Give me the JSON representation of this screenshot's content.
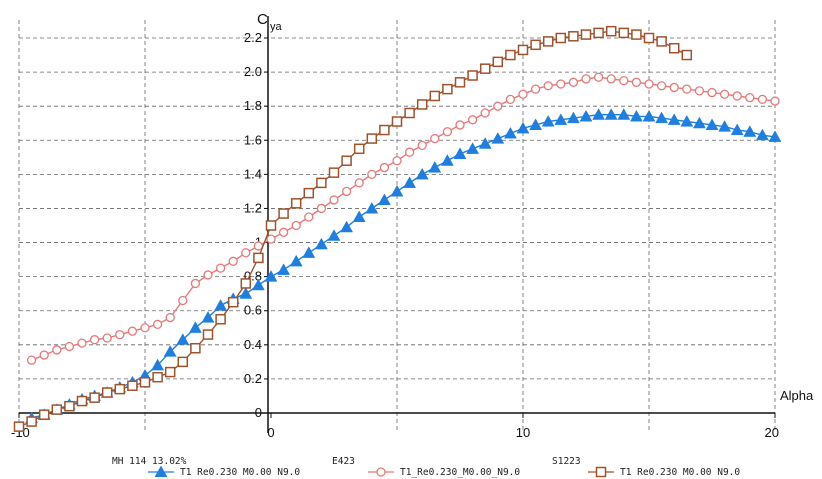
{
  "chart_data": {
    "type": "line",
    "title": "",
    "xlabel": "Alpha",
    "ylabel_main": "C",
    "ylabel_sub": "ya",
    "xlim": [
      -10,
      20
    ],
    "ylim": [
      -0.1,
      2.35
    ],
    "x_ticks": [
      -10,
      0,
      10,
      20
    ],
    "x_tick_labels": [
      "-10",
      "0",
      "10",
      "20"
    ],
    "y_ticks": [
      0,
      0.2,
      0.4,
      0.6,
      0.8,
      1,
      1.2,
      1.4,
      1.6,
      1.8,
      2.0,
      2.2
    ],
    "y_tick_labels": [
      "0",
      "0.2",
      "0.4",
      "0.6",
      "0.8",
      "1",
      "1.2",
      "1.4",
      "1.6",
      "1.8",
      "2.0",
      "2.2"
    ],
    "grid": true,
    "legend_position": "bottom",
    "series": [
      {
        "name": "MH 114  13.02%",
        "label": "T1 Re0.230 M0.00 N9.0",
        "color": "#1e7fe0",
        "marker": "triangle",
        "points": [
          [
            -9.5,
            -0.03
          ],
          [
            -9.0,
            -0.01
          ],
          [
            -8.5,
            0.02
          ],
          [
            -8.0,
            0.05
          ],
          [
            -7.5,
            0.08
          ],
          [
            -7.0,
            0.1
          ],
          [
            -6.5,
            0.12
          ],
          [
            -6.0,
            0.15
          ],
          [
            -5.5,
            0.18
          ],
          [
            -5.0,
            0.22
          ],
          [
            -4.5,
            0.28
          ],
          [
            -4.0,
            0.36
          ],
          [
            -3.5,
            0.43
          ],
          [
            -3.0,
            0.5
          ],
          [
            -2.5,
            0.56
          ],
          [
            -2.0,
            0.63
          ],
          [
            -1.5,
            0.67
          ],
          [
            -1.0,
            0.7
          ],
          [
            -0.5,
            0.75
          ],
          [
            0.0,
            0.8
          ],
          [
            0.5,
            0.84
          ],
          [
            1.0,
            0.89
          ],
          [
            1.5,
            0.94
          ],
          [
            2.0,
            0.99
          ],
          [
            2.5,
            1.04
          ],
          [
            3.0,
            1.09
          ],
          [
            3.5,
            1.15
          ],
          [
            4.0,
            1.2
          ],
          [
            4.5,
            1.25
          ],
          [
            5.0,
            1.3
          ],
          [
            5.5,
            1.35
          ],
          [
            6.0,
            1.4
          ],
          [
            6.5,
            1.44
          ],
          [
            7.0,
            1.48
          ],
          [
            7.5,
            1.52
          ],
          [
            8.0,
            1.55
          ],
          [
            8.5,
            1.58
          ],
          [
            9.0,
            1.61
          ],
          [
            9.5,
            1.64
          ],
          [
            10.0,
            1.67
          ],
          [
            10.5,
            1.69
          ],
          [
            11.0,
            1.71
          ],
          [
            11.5,
            1.72
          ],
          [
            12.0,
            1.73
          ],
          [
            12.5,
            1.74
          ],
          [
            13.0,
            1.75
          ],
          [
            13.5,
            1.75
          ],
          [
            14.0,
            1.75
          ],
          [
            14.5,
            1.74
          ],
          [
            15.0,
            1.74
          ],
          [
            15.5,
            1.73
          ],
          [
            16.0,
            1.72
          ],
          [
            16.5,
            1.71
          ],
          [
            17.0,
            1.7
          ],
          [
            17.5,
            1.69
          ],
          [
            18.0,
            1.68
          ],
          [
            18.5,
            1.66
          ],
          [
            19.0,
            1.65
          ],
          [
            19.5,
            1.63
          ],
          [
            20.0,
            1.62
          ]
        ]
      },
      {
        "name": "E423",
        "label": "T1_Re0.230_M0.00_N9.0",
        "color": "#e87878",
        "marker": "circle",
        "points": [
          [
            -9.5,
            0.31
          ],
          [
            -9.0,
            0.34
          ],
          [
            -8.5,
            0.37
          ],
          [
            -8.0,
            0.39
          ],
          [
            -7.5,
            0.41
          ],
          [
            -7.0,
            0.43
          ],
          [
            -6.5,
            0.44
          ],
          [
            -6.0,
            0.46
          ],
          [
            -5.5,
            0.48
          ],
          [
            -5.0,
            0.5
          ],
          [
            -4.5,
            0.52
          ],
          [
            -4.0,
            0.56
          ],
          [
            -3.5,
            0.66
          ],
          [
            -3.0,
            0.76
          ],
          [
            -2.5,
            0.81
          ],
          [
            -2.0,
            0.85
          ],
          [
            -1.5,
            0.89
          ],
          [
            -1.0,
            0.94
          ],
          [
            -0.5,
            0.98
          ],
          [
            0.0,
            1.02
          ],
          [
            0.5,
            1.06
          ],
          [
            1.0,
            1.1
          ],
          [
            1.5,
            1.15
          ],
          [
            2.0,
            1.2
          ],
          [
            2.5,
            1.25
          ],
          [
            3.0,
            1.3
          ],
          [
            3.5,
            1.35
          ],
          [
            4.0,
            1.4
          ],
          [
            4.5,
            1.44
          ],
          [
            5.0,
            1.48
          ],
          [
            5.5,
            1.53
          ],
          [
            6.0,
            1.57
          ],
          [
            6.5,
            1.61
          ],
          [
            7.0,
            1.65
          ],
          [
            7.5,
            1.69
          ],
          [
            8.0,
            1.72
          ],
          [
            8.5,
            1.76
          ],
          [
            9.0,
            1.8
          ],
          [
            9.5,
            1.84
          ],
          [
            10.0,
            1.87
          ],
          [
            10.5,
            1.9
          ],
          [
            11.0,
            1.92
          ],
          [
            11.5,
            1.93
          ],
          [
            12.0,
            1.94
          ],
          [
            12.5,
            1.96
          ],
          [
            13.0,
            1.97
          ],
          [
            13.5,
            1.96
          ],
          [
            14.0,
            1.95
          ],
          [
            14.5,
            1.94
          ],
          [
            15.0,
            1.93
          ],
          [
            15.5,
            1.92
          ],
          [
            16.0,
            1.91
          ],
          [
            16.5,
            1.9
          ],
          [
            17.0,
            1.89
          ],
          [
            17.5,
            1.88
          ],
          [
            18.0,
            1.87
          ],
          [
            18.5,
            1.86
          ],
          [
            19.0,
            1.85
          ],
          [
            19.5,
            1.84
          ],
          [
            20.0,
            1.83
          ]
        ]
      },
      {
        "name": "S1223",
        "label": "T1 Re0.230 M0.00 N9.0",
        "color": "#a0522d",
        "marker": "square",
        "points": [
          [
            -10.0,
            -0.08
          ],
          [
            -9.5,
            -0.05
          ],
          [
            -9.0,
            -0.01
          ],
          [
            -8.5,
            0.02
          ],
          [
            -8.0,
            0.04
          ],
          [
            -7.5,
            0.07
          ],
          [
            -7.0,
            0.09
          ],
          [
            -6.5,
            0.12
          ],
          [
            -6.0,
            0.14
          ],
          [
            -5.5,
            0.16
          ],
          [
            -5.0,
            0.18
          ],
          [
            -4.5,
            0.21
          ],
          [
            -4.0,
            0.24
          ],
          [
            -3.5,
            0.3
          ],
          [
            -3.0,
            0.38
          ],
          [
            -2.5,
            0.46
          ],
          [
            -2.0,
            0.55
          ],
          [
            -1.5,
            0.65
          ],
          [
            -1.0,
            0.76
          ],
          [
            -0.5,
            0.91
          ],
          [
            0.0,
            1.1
          ],
          [
            0.5,
            1.17
          ],
          [
            1.0,
            1.23
          ],
          [
            1.5,
            1.29
          ],
          [
            2.0,
            1.35
          ],
          [
            2.5,
            1.41
          ],
          [
            3.0,
            1.48
          ],
          [
            3.5,
            1.55
          ],
          [
            4.0,
            1.61
          ],
          [
            4.5,
            1.66
          ],
          [
            5.0,
            1.71
          ],
          [
            5.5,
            1.76
          ],
          [
            6.0,
            1.81
          ],
          [
            6.5,
            1.86
          ],
          [
            7.0,
            1.9
          ],
          [
            7.5,
            1.94
          ],
          [
            8.0,
            1.98
          ],
          [
            8.5,
            2.02
          ],
          [
            9.0,
            2.06
          ],
          [
            9.5,
            2.1
          ],
          [
            10.0,
            2.13
          ],
          [
            10.5,
            2.16
          ],
          [
            11.0,
            2.18
          ],
          [
            11.5,
            2.2
          ],
          [
            12.0,
            2.21
          ],
          [
            12.5,
            2.22
          ],
          [
            13.0,
            2.23
          ],
          [
            13.5,
            2.24
          ],
          [
            14.0,
            2.23
          ],
          [
            14.5,
            2.22
          ],
          [
            15.0,
            2.2
          ],
          [
            15.5,
            2.18
          ],
          [
            16.0,
            2.14
          ],
          [
            16.5,
            2.1
          ]
        ]
      }
    ]
  }
}
